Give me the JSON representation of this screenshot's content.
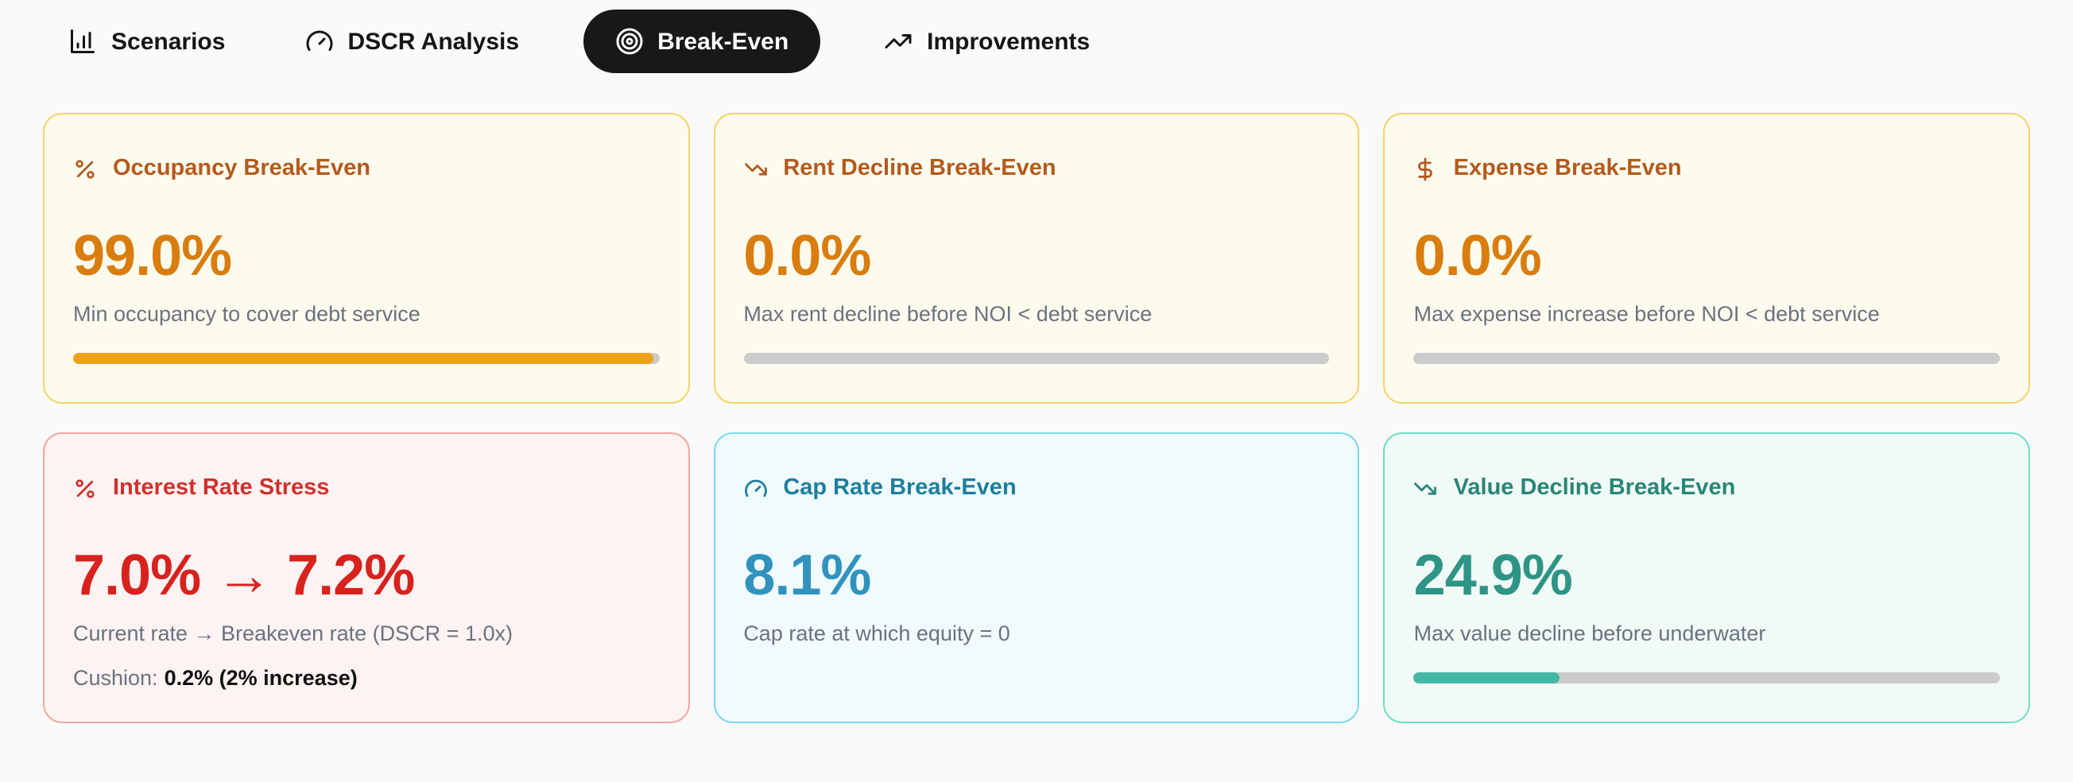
{
  "tabs": [
    {
      "label": "Scenarios",
      "icon": "bar-chart-icon",
      "active": false
    },
    {
      "label": "DSCR Analysis",
      "icon": "gauge-icon",
      "active": false
    },
    {
      "label": "Break-Even",
      "icon": "target-icon",
      "active": true
    },
    {
      "label": "Improvements",
      "icon": "trending-up-icon",
      "active": false
    }
  ],
  "cards": [
    {
      "title": "Occupancy Break-Even",
      "icon": "percent-icon",
      "value": "99.0%",
      "description": "Min occupancy to cover debt service",
      "progress": 99,
      "theme": "amber"
    },
    {
      "title": "Rent Decline Break-Even",
      "icon": "trending-down-icon",
      "value": "0.0%",
      "description": "Max rent decline before NOI < debt service",
      "progress": 0,
      "theme": "amber"
    },
    {
      "title": "Expense Break-Even",
      "icon": "dollar-icon",
      "value": "0.0%",
      "description": "Max expense increase before NOI < debt service",
      "progress": 0,
      "theme": "amber"
    },
    {
      "title": "Interest Rate Stress",
      "icon": "percent-icon",
      "value": "7.0% → 7.2%",
      "description": "Current rate → Breakeven rate (DSCR = 1.0x)",
      "cushion_label": "Cushion:",
      "cushion_value": "0.2% (2% increase)",
      "theme": "red"
    },
    {
      "title": "Cap Rate Break-Even",
      "icon": "gauge-icon",
      "value": "8.1%",
      "description": "Cap rate at which equity = 0",
      "theme": "cyan"
    },
    {
      "title": "Value Decline Break-Even",
      "icon": "trending-down-icon",
      "value": "24.9%",
      "description": "Max value decline before underwater",
      "progress": 25,
      "theme": "teal"
    }
  ],
  "palette": {
    "page_background": "#fafafa",
    "active_tab_background": "#181818",
    "active_tab_text": "#ffffff",
    "amber_title": "#b35a1d",
    "amber_value": "#d97d0e",
    "amber_bar": "#f0a11c",
    "amber_border": "#f5d469",
    "red_title": "#d0312c",
    "red_value": "#d7221e",
    "red_border": "#f2a7a1",
    "cyan_title": "#1f7e9e",
    "cyan_value": "#3193bd",
    "cyan_border": "#7ed7f0",
    "teal_title": "#2b8578",
    "teal_value": "#2e9486",
    "teal_bar": "#45b8a5",
    "teal_border": "#6fdfc5",
    "bar_track": "#cbcbcb",
    "description_text": "#6b7280"
  }
}
